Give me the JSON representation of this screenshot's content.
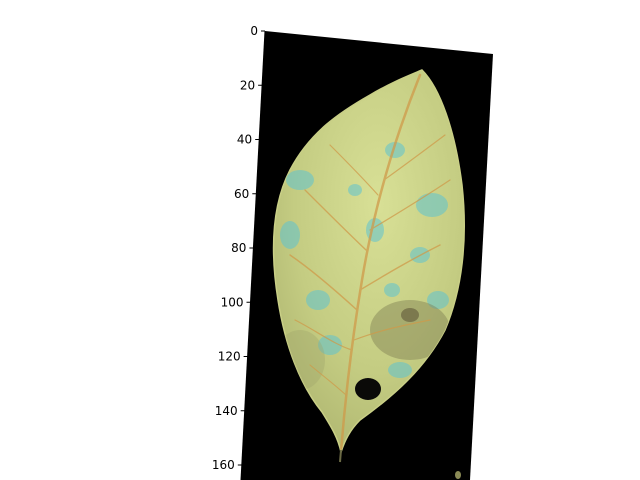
{
  "chart_data": {
    "type": "image",
    "title": "",
    "xlabel": "",
    "ylabel": "",
    "y_axis": {
      "ticks": [
        0,
        20,
        40,
        60,
        80,
        100,
        120,
        140,
        160
      ],
      "tick_labels": [
        "0",
        "20",
        "40",
        "60",
        "80",
        "100",
        "120",
        "140",
        "160"
      ]
    },
    "image_content": "leaf",
    "colors": {
      "background": "#000000",
      "leaf_main": "#c6cf86",
      "leaf_light": "#d6df95",
      "leaf_shadow": "#a9b36e",
      "spot_cyan": "#5cc6cf",
      "vein": "#d29a45",
      "blemish_dark": "#5a5a3a"
    }
  }
}
